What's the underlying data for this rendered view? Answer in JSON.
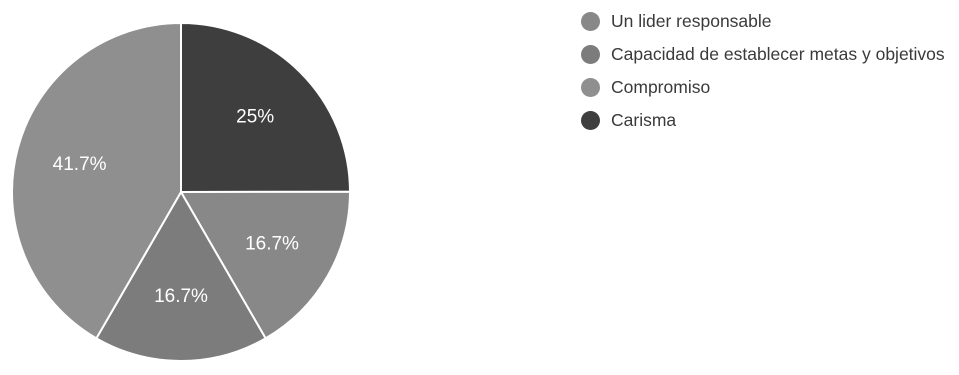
{
  "chart_data": {
    "type": "pie",
    "title": "",
    "slices": [
      {
        "label": "Carisma",
        "value": 25,
        "display": "25%",
        "color": "#3e3e3e"
      },
      {
        "label": "Un lider responsable",
        "value": 16.7,
        "display": "16.7%",
        "color": "#888888"
      },
      {
        "label": "Capacidad de establecer metas y objetivos",
        "value": 16.7,
        "display": "16.7%",
        "color": "#7c7c7c"
      },
      {
        "label": "Compromiso",
        "value": 41.7,
        "display": "41.7%",
        "color": "#8f8f8f"
      }
    ],
    "legend": {
      "placement": "right",
      "items": [
        {
          "label": "Un lider responsable",
          "color": "#888888"
        },
        {
          "label": "Capacidad de establecer metas y objetivos",
          "color": "#7c7c7c"
        },
        {
          "label": "Compromiso",
          "color": "#8f8f8f"
        },
        {
          "label": "Carisma",
          "color": "#3e3e3e"
        }
      ]
    },
    "slice_border_color": "#ffffff"
  }
}
